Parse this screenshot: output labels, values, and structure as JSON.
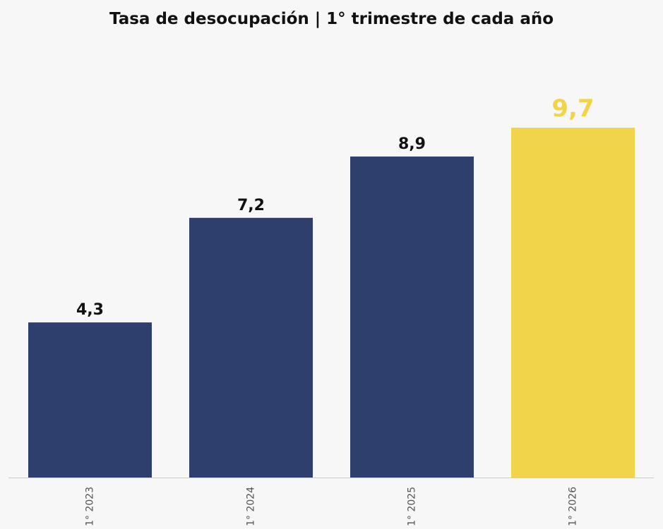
{
  "chart_data": {
    "type": "bar",
    "title": "Tasa de desocupación | 1° trimestre de cada año",
    "categories": [
      "1° 2023",
      "1° 2024",
      "1° 2025",
      "1° 2026"
    ],
    "values": [
      4.3,
      7.2,
      8.9,
      9.7
    ],
    "value_labels": [
      "4,3",
      "7,2",
      "8,9",
      "9,7"
    ],
    "xlabel": "",
    "ylabel": "",
    "ylim": [
      0,
      9.7
    ],
    "grid": false,
    "legend": "none",
    "x_tick_orientation": "vertical",
    "colors": {
      "default_bar": "#2e3f6e",
      "highlight_bar": "#f2d44b",
      "default_label": "#111111",
      "highlight_label": "#f2d44b",
      "axis_line": "#cccccc"
    },
    "highlight_index": 3
  }
}
